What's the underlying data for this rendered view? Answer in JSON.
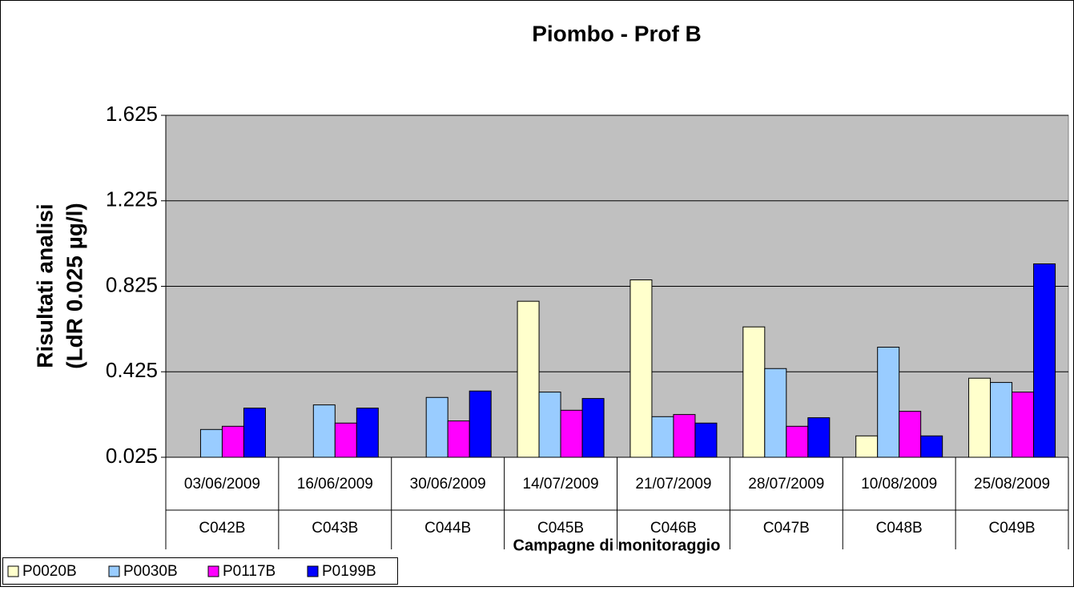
{
  "chart_data": {
    "type": "bar",
    "title": "Piombo - Prof B",
    "y_label": [
      "Risultati analisi",
      "(LdR 0.025 µg/l)"
    ],
    "x_label": "Campagne di monitoraggio",
    "categories": [
      "03/06/2009",
      "16/06/2009",
      "30/06/2009",
      "14/07/2009",
      "21/07/2009",
      "28/07/2009",
      "10/08/2009",
      "25/08/2009"
    ],
    "subcategories": [
      "C042B",
      "C043B",
      "C044B",
      "C045B",
      "C046B",
      "C047B",
      "C048B",
      "C049B"
    ],
    "series": [
      {
        "name": "P0020B",
        "color": "#ffffcc",
        "values": [
          null,
          null,
          null,
          0.755,
          0.855,
          0.635,
          0.125,
          0.395
        ]
      },
      {
        "name": "P0030B",
        "color": "#99ccff",
        "values": [
          0.155,
          0.27,
          0.305,
          0.33,
          0.215,
          0.44,
          0.54,
          0.375
        ]
      },
      {
        "name": "P0117B",
        "color": "#ff00ff",
        "values": [
          0.17,
          0.185,
          0.195,
          0.245,
          0.225,
          0.17,
          0.24,
          0.33
        ]
      },
      {
        "name": "P0199B",
        "color": "#0000ff",
        "values": [
          0.255,
          0.255,
          0.335,
          0.3,
          0.185,
          0.21,
          0.125,
          0.93
        ]
      }
    ],
    "ylim": [
      0.025,
      1.625
    ],
    "yticks": [
      0.025,
      0.425,
      0.825,
      1.225,
      1.625
    ],
    "grid": true,
    "legend": "bottom-left"
  }
}
